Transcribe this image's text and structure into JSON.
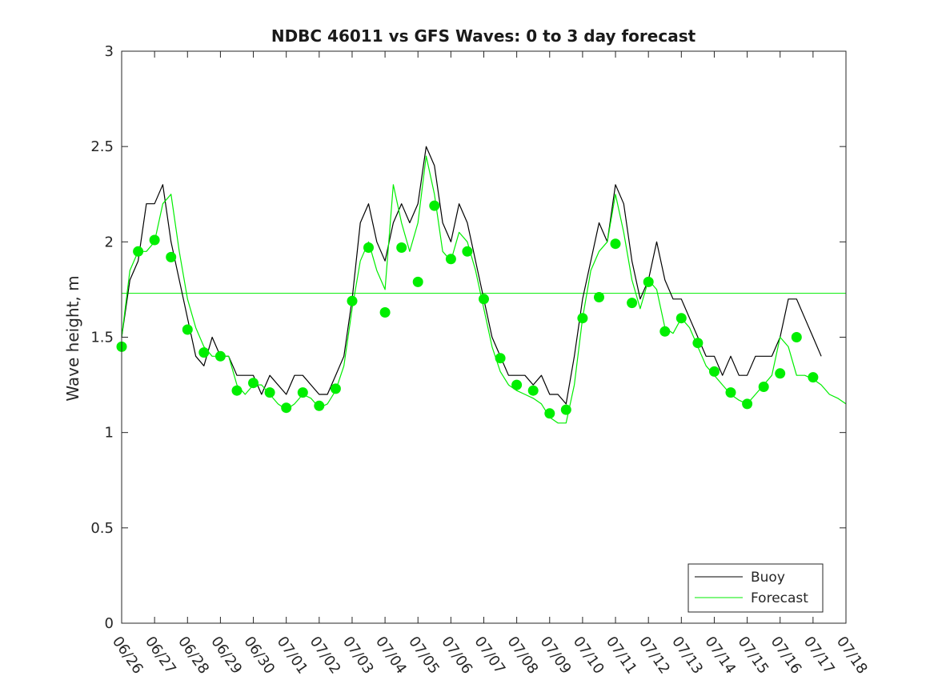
{
  "chart_data": {
    "type": "line",
    "title": "NDBC 46011 vs GFS Waves: 0 to 3 day forecast",
    "xlabel": "",
    "ylabel": "Wave height, m",
    "ylim": [
      0,
      3
    ],
    "yticks": [
      0,
      0.5,
      1,
      1.5,
      2,
      2.5,
      3
    ],
    "ytick_labels": [
      "0",
      "0.5",
      "1",
      "1.5",
      "2",
      "2.5",
      "3"
    ],
    "x_is_day_index": false,
    "xlim": [
      "06/26",
      "07/18"
    ],
    "xtick_labels": [
      "06/26",
      "06/27",
      "06/28",
      "06/29",
      "06/30",
      "07/01",
      "07/02",
      "07/03",
      "07/04",
      "07/05",
      "07/06",
      "07/07",
      "07/08",
      "07/09",
      "07/10",
      "07/11",
      "07/12",
      "07/13",
      "07/14",
      "07/15",
      "07/16",
      "07/17",
      "07/18"
    ],
    "grid": false,
    "legend_position": "bottom-right",
    "colors": {
      "buoy": "#000000",
      "forecast": "#00ee00",
      "forecast_marker": "#00ee00"
    },
    "reference_line": {
      "y": 1.73
    },
    "series": [
      {
        "name": "Buoy",
        "points": [
          [
            "06/26",
            1.5
          ],
          [
            "06/26 06:00",
            1.8
          ],
          [
            "06/26 12:00",
            1.9
          ],
          [
            "06/26 18:00",
            2.2
          ],
          [
            "06/27",
            2.2
          ],
          [
            "06/27 06:00",
            2.3
          ],
          [
            "06/27 12:00",
            2.0
          ],
          [
            "06/27 18:00",
            1.8
          ],
          [
            "06/28",
            1.6
          ],
          [
            "06/28 06:00",
            1.4
          ],
          [
            "06/28 12:00",
            1.35
          ],
          [
            "06/28 18:00",
            1.5
          ],
          [
            "06/29",
            1.4
          ],
          [
            "06/29 06:00",
            1.4
          ],
          [
            "06/29 12:00",
            1.3
          ],
          [
            "06/29 18:00",
            1.3
          ],
          [
            "06/30",
            1.3
          ],
          [
            "06/30 06:00",
            1.2
          ],
          [
            "06/30 12:00",
            1.3
          ],
          [
            "06/30 18:00",
            1.25
          ],
          [
            "07/01",
            1.2
          ],
          [
            "07/01 06:00",
            1.3
          ],
          [
            "07/01 12:00",
            1.3
          ],
          [
            "07/01 18:00",
            1.25
          ],
          [
            "07/02",
            1.2
          ],
          [
            "07/02 06:00",
            1.2
          ],
          [
            "07/02 12:00",
            1.3
          ],
          [
            "07/02 18:00",
            1.4
          ],
          [
            "07/03",
            1.7
          ],
          [
            "07/03 06:00",
            2.1
          ],
          [
            "07/03 12:00",
            2.2
          ],
          [
            "07/03 18:00",
            2.0
          ],
          [
            "07/04",
            1.9
          ],
          [
            "07/04 06:00",
            2.1
          ],
          [
            "07/04 12:00",
            2.2
          ],
          [
            "07/04 18:00",
            2.1
          ],
          [
            "07/05",
            2.2
          ],
          [
            "07/05 06:00",
            2.5
          ],
          [
            "07/05 12:00",
            2.4
          ],
          [
            "07/05 18:00",
            2.1
          ],
          [
            "07/06",
            2.0
          ],
          [
            "07/06 06:00",
            2.2
          ],
          [
            "07/06 12:00",
            2.1
          ],
          [
            "07/06 18:00",
            1.9
          ],
          [
            "07/07",
            1.7
          ],
          [
            "07/07 06:00",
            1.5
          ],
          [
            "07/07 12:00",
            1.4
          ],
          [
            "07/07 18:00",
            1.3
          ],
          [
            "07/08",
            1.3
          ],
          [
            "07/08 06:00",
            1.3
          ],
          [
            "07/08 12:00",
            1.25
          ],
          [
            "07/08 18:00",
            1.3
          ],
          [
            "07/09",
            1.2
          ],
          [
            "07/09 06:00",
            1.2
          ],
          [
            "07/09 12:00",
            1.15
          ],
          [
            "07/09 18:00",
            1.4
          ],
          [
            "07/10",
            1.7
          ],
          [
            "07/10 06:00",
            1.9
          ],
          [
            "07/10 12:00",
            2.1
          ],
          [
            "07/10 18:00",
            2.0
          ],
          [
            "07/11",
            2.3
          ],
          [
            "07/11 06:00",
            2.2
          ],
          [
            "07/11 12:00",
            1.9
          ],
          [
            "07/11 18:00",
            1.7
          ],
          [
            "07/12",
            1.8
          ],
          [
            "07/12 06:00",
            2.0
          ],
          [
            "07/12 12:00",
            1.8
          ],
          [
            "07/12 18:00",
            1.7
          ],
          [
            "07/13",
            1.7
          ],
          [
            "07/13 06:00",
            1.6
          ],
          [
            "07/13 12:00",
            1.5
          ],
          [
            "07/13 18:00",
            1.4
          ],
          [
            "07/14",
            1.4
          ],
          [
            "07/14 06:00",
            1.3
          ],
          [
            "07/14 12:00",
            1.4
          ],
          [
            "07/14 18:00",
            1.3
          ],
          [
            "07/15",
            1.3
          ],
          [
            "07/15 06:00",
            1.4
          ],
          [
            "07/15 12:00",
            1.4
          ],
          [
            "07/15 18:00",
            1.4
          ],
          [
            "07/16",
            1.5
          ],
          [
            "07/16 06:00",
            1.7
          ],
          [
            "07/16 12:00",
            1.7
          ],
          [
            "07/16 18:00",
            1.6
          ],
          [
            "07/17",
            1.5
          ],
          [
            "07/17 06:00",
            1.4
          ]
        ]
      },
      {
        "name": "Forecast",
        "points": [
          [
            "06/26",
            1.5
          ],
          [
            "06/26 06:00",
            1.85
          ],
          [
            "06/26 12:00",
            1.95
          ],
          [
            "06/26 18:00",
            1.95
          ],
          [
            "06/27",
            2.0
          ],
          [
            "06/27 06:00",
            2.2
          ],
          [
            "06/27 12:00",
            2.25
          ],
          [
            "06/27 18:00",
            1.95
          ],
          [
            "06/28",
            1.7
          ],
          [
            "06/28 06:00",
            1.55
          ],
          [
            "06/28 12:00",
            1.45
          ],
          [
            "06/28 18:00",
            1.4
          ],
          [
            "06/29",
            1.4
          ],
          [
            "06/29 06:00",
            1.4
          ],
          [
            "06/29 12:00",
            1.25
          ],
          [
            "06/29 18:00",
            1.2
          ],
          [
            "06/30",
            1.25
          ],
          [
            "06/30 06:00",
            1.25
          ],
          [
            "06/30 12:00",
            1.2
          ],
          [
            "06/30 18:00",
            1.15
          ],
          [
            "07/01",
            1.12
          ],
          [
            "07/01 06:00",
            1.15
          ],
          [
            "07/01 12:00",
            1.2
          ],
          [
            "07/01 18:00",
            1.18
          ],
          [
            "07/02",
            1.13
          ],
          [
            "07/02 06:00",
            1.15
          ],
          [
            "07/02 12:00",
            1.22
          ],
          [
            "07/02 18:00",
            1.35
          ],
          [
            "07/03",
            1.65
          ],
          [
            "07/03 06:00",
            1.9
          ],
          [
            "07/03 12:00",
            2.0
          ],
          [
            "07/03 18:00",
            1.85
          ],
          [
            "07/04",
            1.75
          ],
          [
            "07/04 06:00",
            2.3
          ],
          [
            "07/04 12:00",
            2.1
          ],
          [
            "07/04 18:00",
            1.95
          ],
          [
            "07/05",
            2.1
          ],
          [
            "07/05 06:00",
            2.45
          ],
          [
            "07/05 12:00",
            2.25
          ],
          [
            "07/05 18:00",
            1.95
          ],
          [
            "07/06",
            1.9
          ],
          [
            "07/06 06:00",
            2.05
          ],
          [
            "07/06 12:00",
            2.0
          ],
          [
            "07/06 18:00",
            1.85
          ],
          [
            "07/07",
            1.65
          ],
          [
            "07/07 06:00",
            1.45
          ],
          [
            "07/07 12:00",
            1.32
          ],
          [
            "07/07 18:00",
            1.25
          ],
          [
            "07/08",
            1.22
          ],
          [
            "07/08 06:00",
            1.2
          ],
          [
            "07/08 12:00",
            1.18
          ],
          [
            "07/08 18:00",
            1.15
          ],
          [
            "07/09",
            1.08
          ],
          [
            "07/09 06:00",
            1.05
          ],
          [
            "07/09 12:00",
            1.05
          ],
          [
            "07/09 18:00",
            1.25
          ],
          [
            "07/10",
            1.6
          ],
          [
            "07/10 06:00",
            1.85
          ],
          [
            "07/10 12:00",
            1.95
          ],
          [
            "07/10 18:00",
            2.0
          ],
          [
            "07/11",
            2.25
          ],
          [
            "07/11 06:00",
            2.05
          ],
          [
            "07/11 12:00",
            1.8
          ],
          [
            "07/11 18:00",
            1.65
          ],
          [
            "07/12",
            1.8
          ],
          [
            "07/12 06:00",
            1.75
          ],
          [
            "07/12 12:00",
            1.55
          ],
          [
            "07/12 18:00",
            1.52
          ],
          [
            "07/13",
            1.6
          ],
          [
            "07/13 06:00",
            1.55
          ],
          [
            "07/13 12:00",
            1.45
          ],
          [
            "07/13 18:00",
            1.35
          ],
          [
            "07/14",
            1.3
          ],
          [
            "07/14 06:00",
            1.25
          ],
          [
            "07/14 12:00",
            1.2
          ],
          [
            "07/14 18:00",
            1.17
          ],
          [
            "07/15",
            1.15
          ],
          [
            "07/15 06:00",
            1.2
          ],
          [
            "07/15 12:00",
            1.25
          ],
          [
            "07/15 18:00",
            1.3
          ],
          [
            "07/16",
            1.5
          ],
          [
            "07/16 06:00",
            1.45
          ],
          [
            "07/16 12:00",
            1.3
          ],
          [
            "07/16 18:00",
            1.3
          ],
          [
            "07/17",
            1.28
          ],
          [
            "07/17 06:00",
            1.25
          ],
          [
            "07/17 12:00",
            1.2
          ],
          [
            "07/17 18:00",
            1.18
          ],
          [
            "07/18",
            1.15
          ]
        ],
        "markers": [
          [
            "06/26",
            1.45
          ],
          [
            "06/26 12:00",
            1.95
          ],
          [
            "06/27",
            2.01
          ],
          [
            "06/27 12:00",
            1.92
          ],
          [
            "06/28",
            1.54
          ],
          [
            "06/28 12:00",
            1.42
          ],
          [
            "06/29",
            1.4
          ],
          [
            "06/29 12:00",
            1.22
          ],
          [
            "06/30",
            1.26
          ],
          [
            "06/30 12:00",
            1.21
          ],
          [
            "07/01",
            1.13
          ],
          [
            "07/01 12:00",
            1.21
          ],
          [
            "07/02",
            1.14
          ],
          [
            "07/02 12:00",
            1.23
          ],
          [
            "07/03",
            1.69
          ],
          [
            "07/03 12:00",
            1.97
          ],
          [
            "07/04",
            1.63
          ],
          [
            "07/04 12:00",
            1.97
          ],
          [
            "07/05",
            1.79
          ],
          [
            "07/05 12:00",
            2.19
          ],
          [
            "07/06",
            1.91
          ],
          [
            "07/06 12:00",
            1.95
          ],
          [
            "07/07",
            1.7
          ],
          [
            "07/07 12:00",
            1.39
          ],
          [
            "07/08",
            1.25
          ],
          [
            "07/08 12:00",
            1.22
          ],
          [
            "07/09",
            1.1
          ],
          [
            "07/09 12:00",
            1.12
          ],
          [
            "07/10",
            1.6
          ],
          [
            "07/10 12:00",
            1.71
          ],
          [
            "07/11",
            1.99
          ],
          [
            "07/11 12:00",
            1.68
          ],
          [
            "07/12",
            1.79
          ],
          [
            "07/12 12:00",
            1.53
          ],
          [
            "07/13",
            1.6
          ],
          [
            "07/13 12:00",
            1.47
          ],
          [
            "07/14",
            1.32
          ],
          [
            "07/14 12:00",
            1.21
          ],
          [
            "07/15",
            1.15
          ],
          [
            "07/15 12:00",
            1.24
          ],
          [
            "07/16",
            1.31
          ],
          [
            "07/16 12:00",
            1.5
          ],
          [
            "07/17",
            1.29
          ]
        ]
      }
    ]
  }
}
